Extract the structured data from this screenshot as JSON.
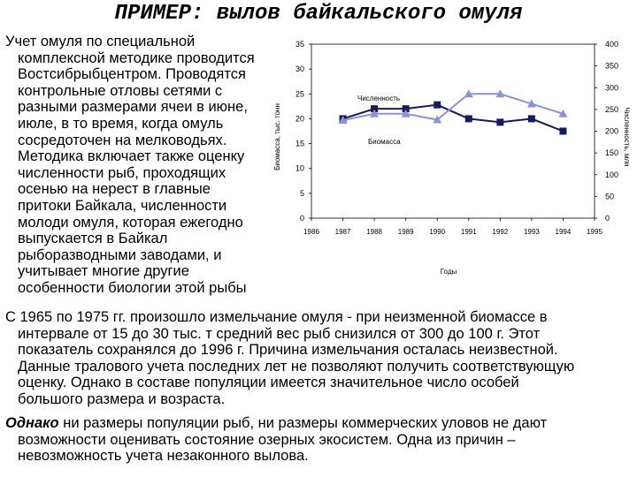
{
  "title": "ПРИМЕР: вылов байкальского омуля",
  "intro_lines": [
    "Учет омуля по специальной",
    "комплексной методике проводится",
    "Востсибрыбцентром. Проводятся",
    "контрольные отловы сетями с",
    "разными размерами ячеи в июне,",
    "июле, в то время, когда омуль",
    "сосредоточен на мелководьях.",
    "Методика включает также оценку",
    "численности рыб, проходящих",
    "осенью на нерест в главные",
    "притоки Байкала, численности",
    "молоди омуля, которая ежегодно",
    "выпускается в Байкал",
    "рыборазводными заводами, и",
    "учитывает многие другие",
    "особенности биологии этой рыбы"
  ],
  "para1_lines": [
    "С 1965 по 1975 гг. произошло измельчание омуля - при неизменной биомассе в",
    "интервале от 15 до 30 тыс. т средний вес рыб снизился от 300 до 100 г. Этот",
    "показатель сохранялся до 1996 г. Причина измельчания осталась неизвестной.",
    "Данные тралового учета последних лет не позволяют получить соответствующую",
    "оценку. Однако в составе популяции имеется значительное число особей",
    "большого размера и возраста."
  ],
  "para2_lead": "Однако",
  "para2_first_rest": " ни размеры популяции рыб, ни размеры коммерческих уловов не дают",
  "para2_lines": [
    "возможности оценивать состояние озерных экосистем. Одна из причин –",
    "невозможность учета незаконного вылова."
  ],
  "chart_data": {
    "type": "line",
    "xlabel": "Годы",
    "ylabel_left": "Биомасса, тыс. тонн",
    "ylabel_right": "Численность, млн",
    "x": [
      1986,
      1987,
      1988,
      1989,
      1990,
      1991,
      1992,
      1993,
      1994,
      1995
    ],
    "y_left_ticks": [
      0,
      5,
      10,
      15,
      20,
      25,
      30,
      35
    ],
    "y_right_ticks": [
      0,
      50,
      100,
      150,
      200,
      250,
      300,
      350,
      400
    ],
    "ylim_left": [
      0,
      35
    ],
    "ylim_right": [
      0,
      400
    ],
    "series": [
      {
        "name": "Биомасса",
        "axis": "left",
        "marker": "square",
        "color": "#141a5c",
        "x": [
          1987,
          1988,
          1989,
          1990,
          1991,
          1992,
          1993,
          1994
        ],
        "values": [
          20,
          22,
          22,
          22.8,
          20,
          19.3,
          20,
          17.5
        ]
      },
      {
        "name": "Численность",
        "axis": "left",
        "marker": "triangle",
        "color": "#8a93d8",
        "x": [
          1987,
          1988,
          1989,
          1990,
          1991,
          1992,
          1993,
          1994
        ],
        "values": [
          19.7,
          21,
          21,
          19.8,
          25,
          25,
          23,
          21
        ]
      }
    ]
  }
}
